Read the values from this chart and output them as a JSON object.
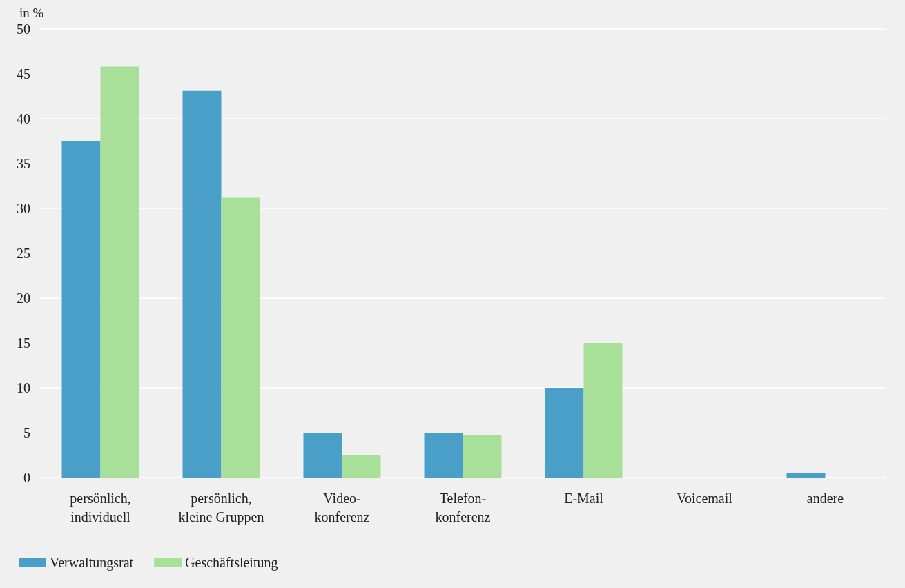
{
  "chart_data": {
    "type": "bar",
    "ylabel": "in %",
    "categories": [
      "persönlich,\nindividuell",
      "persönlich,\nkleine Gruppen",
      "Video-\nkonferenz",
      "Telefon-\nkonferenz",
      "E-Mail",
      "Voicemail",
      "andere"
    ],
    "series": [
      {
        "name": "Verwaltungsrat",
        "color": "#4a9fc8",
        "values": [
          37.5,
          43.1,
          5.0,
          5.0,
          10.0,
          0,
          0.5
        ]
      },
      {
        "name": "Geschäftsleitung",
        "color": "#a8e09a",
        "values": [
          45.8,
          31.2,
          2.5,
          4.7,
          15.0,
          0,
          0
        ]
      }
    ],
    "ylim": [
      0,
      50
    ],
    "yticks": [
      0,
      5,
      10,
      15,
      20,
      25,
      30,
      35,
      40,
      45,
      50
    ],
    "grid": "y",
    "legend": "bottom left"
  }
}
